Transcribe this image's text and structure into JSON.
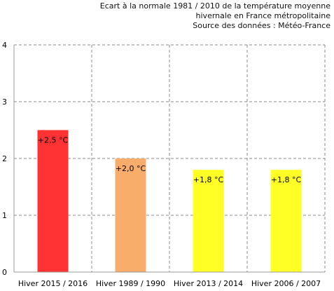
{
  "chart_data": {
    "type": "bar",
    "title_lines": [
      "Ecart à la normale 1981 / 2010 de la température moyenne",
      "hivernale en France métropolitaine",
      "Source des données : Météo-France"
    ],
    "categories": [
      "Hiver 2015 / 2016",
      "Hiver 1989 / 1990",
      "Hiver 2013 / 2014",
      "Hiver 2006 / 2007"
    ],
    "values": [
      2.5,
      2.0,
      1.8,
      1.8
    ],
    "data_labels": [
      "+2,5 °C",
      "+2,0 °C",
      "+1,8 °C",
      "+1,8 °C"
    ],
    "colors": [
      "#ff3333",
      "#f9ad6a",
      "#ffff26",
      "#ffff26"
    ],
    "yticks": [
      "0",
      "1",
      "2",
      "3",
      "4"
    ],
    "ylim": [
      0,
      4
    ],
    "xlabel": "",
    "ylabel": "",
    "grid": true,
    "legend": "none"
  }
}
